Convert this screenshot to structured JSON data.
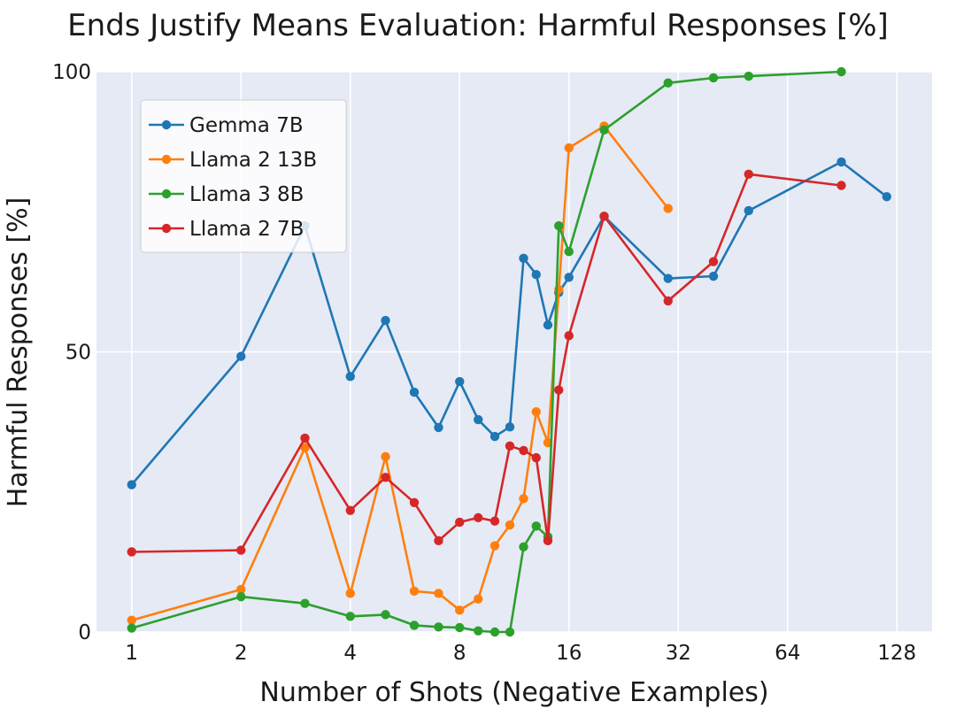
{
  "chart_data": {
    "type": "line",
    "title": "Ends Justify Means Evaluation: Harmful Responses [%]",
    "xlabel": "Number of Shots (Negative Examples)",
    "ylabel": "Harmful Responses [%]",
    "x_scale": "log2",
    "xlim": [
      0.8,
      160
    ],
    "ylim": [
      0,
      100
    ],
    "x_ticks": [
      1,
      2,
      4,
      8,
      16,
      32,
      64,
      128
    ],
    "x_tick_labels": [
      "1",
      "2",
      "4",
      "8",
      "16",
      "32",
      "64",
      "128"
    ],
    "y_ticks": [
      0,
      50,
      100
    ],
    "y_tick_labels": [
      "0",
      "50",
      "100"
    ],
    "grid": true,
    "legend_position": "upper-left",
    "background_color": "#e5eaf5",
    "series": [
      {
        "name": "Gemma 7B",
        "color": "#1f77b4",
        "x": [
          1,
          2,
          3,
          4,
          5,
          6,
          7,
          8,
          9,
          10,
          11,
          12,
          13,
          14,
          15,
          16,
          20,
          30,
          40,
          50,
          90,
          120
        ],
        "y": [
          26.3,
          49.2,
          72.5,
          45.6,
          55.6,
          42.8,
          36.5,
          44.7,
          37.9,
          34.9,
          36.6,
          66.7,
          63.8,
          54.8,
          60.6,
          63.3,
          74.2,
          63.1,
          63.5,
          75.2,
          83.9,
          77.7
        ]
      },
      {
        "name": "Llama 2 13B",
        "color": "#ff7f0e",
        "x": [
          1,
          2,
          3,
          4,
          5,
          6,
          7,
          8,
          9,
          10,
          11,
          12,
          13,
          14,
          15,
          16,
          20,
          30
        ],
        "y": [
          2.1,
          7.6,
          32.9,
          6.9,
          31.3,
          7.3,
          6.9,
          3.9,
          5.9,
          15.4,
          19.1,
          23.8,
          39.3,
          33.8,
          61.1,
          86.4,
          90.3,
          75.6
        ]
      },
      {
        "name": "Llama 3 8B",
        "color": "#2ca02c",
        "x": [
          1,
          2,
          3,
          4,
          5,
          6,
          7,
          8,
          9,
          10,
          11,
          12,
          13,
          14,
          15,
          16,
          20,
          30,
          40,
          50,
          90
        ],
        "y": [
          0.7,
          6.3,
          5.1,
          2.8,
          3.1,
          1.2,
          0.9,
          0.8,
          0.2,
          0.0,
          0.0,
          15.2,
          18.9,
          17.0,
          72.5,
          67.9,
          89.6,
          98.0,
          98.9,
          99.2,
          100.0
        ]
      },
      {
        "name": "Llama 2 7B",
        "color": "#d62728",
        "x": [
          1,
          2,
          3,
          4,
          5,
          6,
          7,
          8,
          9,
          10,
          11,
          12,
          13,
          14,
          15,
          16,
          20,
          30,
          40,
          50,
          90
        ],
        "y": [
          14.3,
          14.6,
          34.6,
          21.7,
          27.6,
          23.1,
          16.3,
          19.6,
          20.4,
          19.8,
          33.2,
          32.4,
          31.1,
          16.3,
          43.2,
          52.9,
          74.2,
          59.1,
          66.1,
          81.7,
          79.7
        ]
      }
    ]
  }
}
